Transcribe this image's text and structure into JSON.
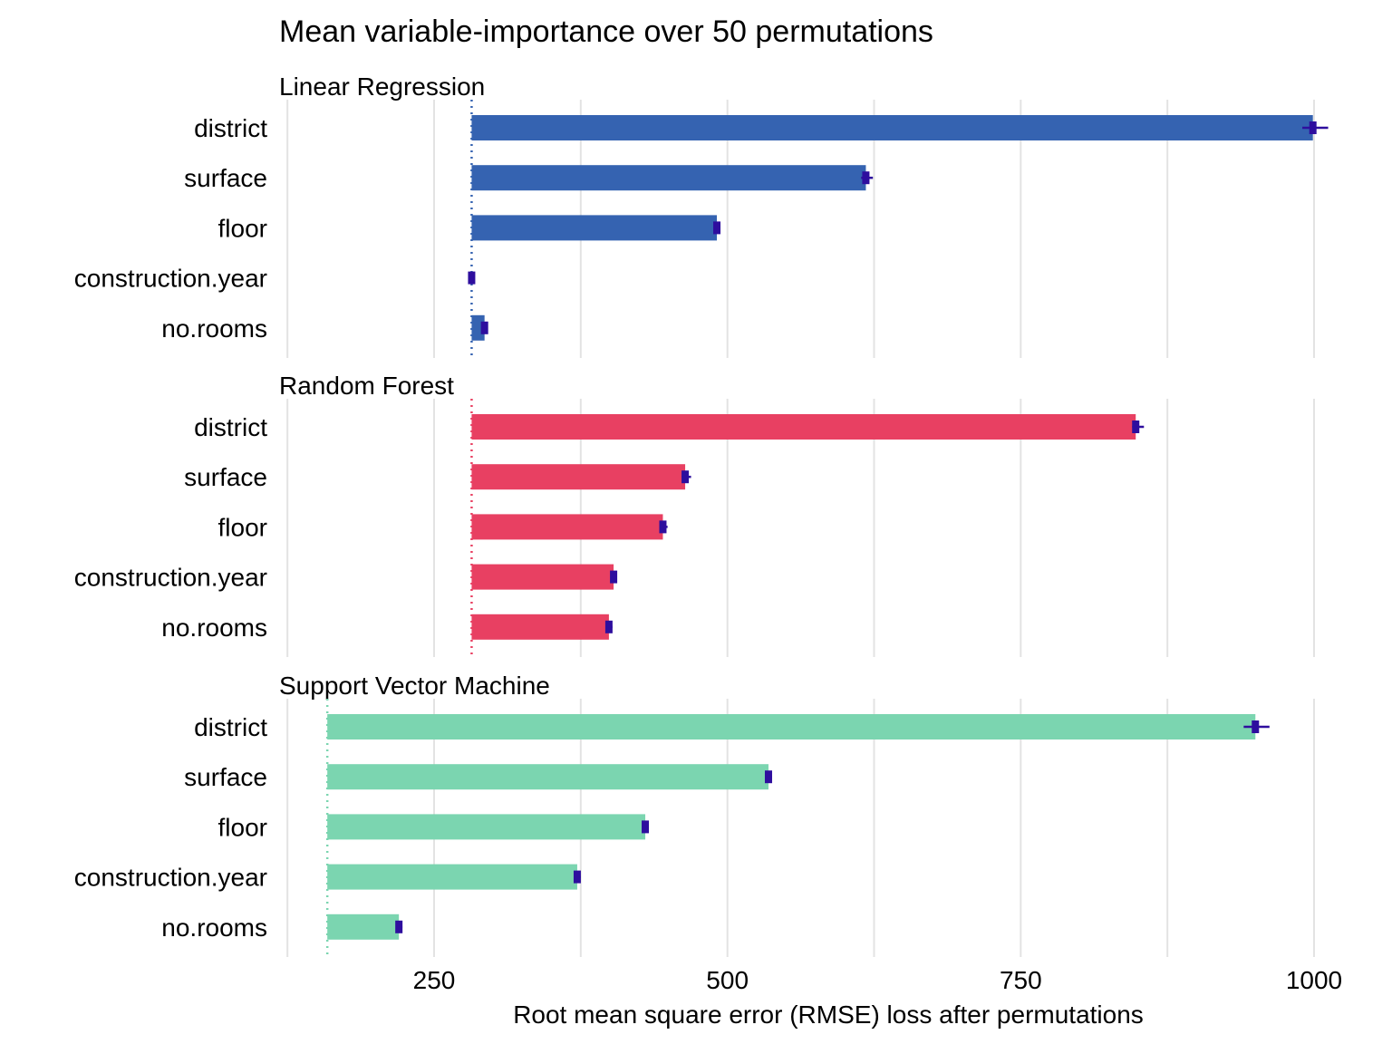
{
  "chart_data": {
    "type": "bar",
    "title": "Mean variable-importance over 50 permutations",
    "xlabel": "Root mean square error (RMSE) loss after permutations",
    "ylabel": "",
    "xlim": [
      130,
      1010
    ],
    "xticks": [
      250,
      500,
      750,
      1000
    ],
    "grid": true,
    "legend": "none",
    "panels": [
      {
        "name": "Linear Regression",
        "color": "#3563B1",
        "baseline": 282,
        "variables": [
          "district",
          "surface",
          "floor",
          "construction.year",
          "no.rooms"
        ],
        "values": [
          999,
          618,
          491,
          282,
          293
        ],
        "error_low": [
          990,
          614,
          489,
          282,
          292
        ],
        "error_high": [
          1012,
          624,
          494,
          283,
          295
        ]
      },
      {
        "name": "Random Forest",
        "color": "#E84062",
        "baseline": 282,
        "variables": [
          "district",
          "surface",
          "floor",
          "construction.year",
          "no.rooms"
        ],
        "values": [
          848,
          464,
          445,
          403,
          399
        ],
        "error_low": [
          845,
          461,
          443,
          402,
          397
        ],
        "error_high": [
          855,
          469,
          449,
          405,
          402
        ]
      },
      {
        "name": "Support Vector Machine",
        "color": "#7BD5B0",
        "baseline": 159,
        "variables": [
          "district",
          "surface",
          "floor",
          "construction.year",
          "no.rooms"
        ],
        "values": [
          950,
          535,
          430,
          372,
          220
        ],
        "error_low": [
          940,
          532,
          428,
          370,
          219
        ],
        "error_high": [
          962,
          538,
          432,
          375,
          223
        ]
      }
    ],
    "error_bar_color": "#2E0E9E"
  }
}
